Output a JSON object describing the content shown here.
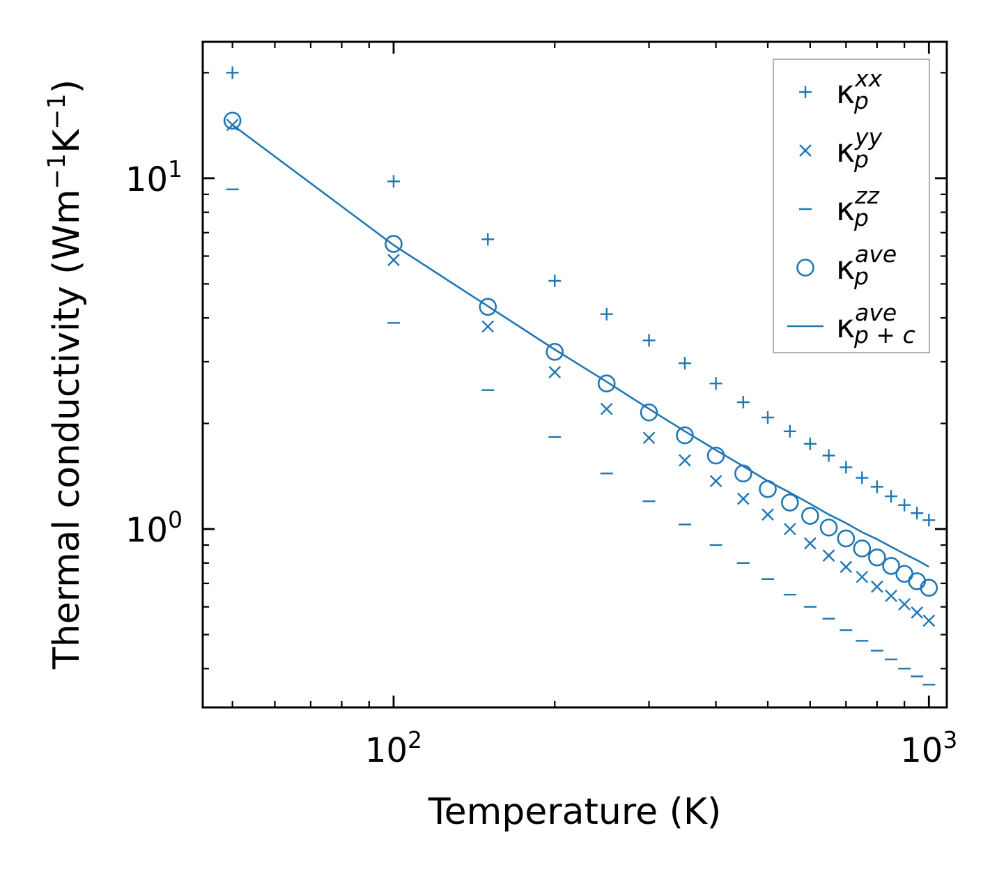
{
  "colors": {
    "series": "#1f77b4",
    "axis": "#000000",
    "legend_border": "#999999"
  },
  "chart_data": {
    "type": "scatter",
    "xscale": "log",
    "yscale": "log",
    "xlabel": "Temperature (K)",
    "ylabel": {
      "prefix": "Thermal conductivity (Wm",
      "exp1": "−1",
      "mid": "K",
      "exp2": "−1",
      "suffix": ")"
    },
    "xlim": [
      44,
      1080
    ],
    "ylim": [
      0.31,
      24.5
    ],
    "xticks": [
      {
        "value": 100,
        "base": "10",
        "exp": "2"
      },
      {
        "value": 1000,
        "base": "10",
        "exp": "3"
      }
    ],
    "yticks": [
      {
        "value": 1,
        "base": "10",
        "exp": "0"
      },
      {
        "value": 10,
        "base": "10",
        "exp": "1"
      }
    ],
    "x": [
      50,
      100,
      150,
      200,
      250,
      300,
      350,
      400,
      450,
      500,
      550,
      600,
      650,
      700,
      750,
      800,
      850,
      900,
      950,
      1000
    ],
    "series": [
      {
        "name": "kxx",
        "marker": "plus",
        "values": [
          20.0,
          9.8,
          6.7,
          5.1,
          4.1,
          3.45,
          2.97,
          2.6,
          2.3,
          2.08,
          1.9,
          1.75,
          1.62,
          1.5,
          1.4,
          1.32,
          1.24,
          1.17,
          1.11,
          1.06
        ],
        "legend": {
          "base": "κ",
          "sub": "p",
          "sup": "xx"
        }
      },
      {
        "name": "kyy",
        "marker": "x",
        "values": [
          14.2,
          5.85,
          3.78,
          2.8,
          2.2,
          1.82,
          1.57,
          1.37,
          1.22,
          1.1,
          1.0,
          0.91,
          0.84,
          0.78,
          0.73,
          0.685,
          0.645,
          0.61,
          0.578,
          0.548
        ],
        "legend": {
          "base": "κ",
          "sub": "p",
          "sup": "yy"
        }
      },
      {
        "name": "kzz",
        "marker": "dash",
        "values": [
          9.3,
          3.87,
          2.49,
          1.83,
          1.44,
          1.2,
          1.03,
          0.9,
          0.8,
          0.72,
          0.65,
          0.6,
          0.555,
          0.515,
          0.48,
          0.45,
          0.425,
          0.4,
          0.38,
          0.36
        ],
        "legend": {
          "base": "κ",
          "sub": "p",
          "sup": "zz"
        }
      },
      {
        "name": "kave",
        "marker": "circle",
        "values": [
          14.6,
          6.5,
          4.3,
          3.2,
          2.6,
          2.15,
          1.85,
          1.62,
          1.44,
          1.3,
          1.19,
          1.09,
          1.01,
          0.94,
          0.88,
          0.83,
          0.785,
          0.745,
          0.71,
          0.68
        ],
        "legend": {
          "base": "κ",
          "sub": "p",
          "sup": "ave"
        }
      },
      {
        "name": "kave_pc",
        "marker": "line",
        "values": [
          14.2,
          6.45,
          4.32,
          3.25,
          2.63,
          2.2,
          1.9,
          1.68,
          1.51,
          1.37,
          1.27,
          1.18,
          1.1,
          1.04,
          0.98,
          0.935,
          0.89,
          0.85,
          0.815,
          0.78
        ],
        "legend": {
          "base": "κ",
          "sub": "p + c",
          "sup": "ave"
        }
      }
    ],
    "legend_position": "upper right"
  }
}
